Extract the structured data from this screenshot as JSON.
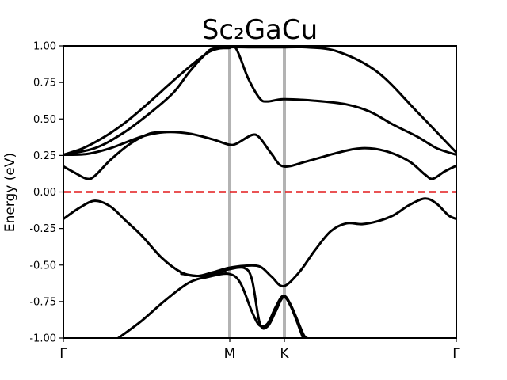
{
  "chart_data": {
    "type": "line",
    "title": "Sc₂GaCu",
    "xlabel": "",
    "ylabel": "Energy (eV)",
    "xlim": [
      0,
      1
    ],
    "ylim": [
      -1.0,
      1.0
    ],
    "yticks": [
      "1.00",
      "0.75",
      "0.50",
      "0.25",
      "0.00",
      "-0.25",
      "-0.50",
      "-0.75",
      "-1.00"
    ],
    "ytick_values": [
      1.0,
      0.75,
      0.5,
      0.25,
      0.0,
      -0.25,
      -0.5,
      -0.75,
      -1.0
    ],
    "high_symmetry_points": [
      {
        "label": "Γ",
        "x": 0.0
      },
      {
        "label": "M",
        "x": 0.4234
      },
      {
        "label": "K",
        "x": 0.5625
      },
      {
        "label": "Γ",
        "x": 1.0
      }
    ],
    "fermi_level": 0.0,
    "fermi_color": "#e41a1c",
    "band_color": "#000000",
    "divider_color": "#b3b3b3",
    "grid": false,
    "bands": [
      {
        "points": [
          [
            0,
            0.255
          ],
          [
            0.05,
            0.3
          ],
          [
            0.1,
            0.37
          ],
          [
            0.15,
            0.46
          ],
          [
            0.2,
            0.57
          ],
          [
            0.25,
            0.69
          ],
          [
            0.3,
            0.81
          ],
          [
            0.35,
            0.92
          ],
          [
            0.38,
            0.97
          ],
          [
            0.42,
            0.99
          ],
          [
            0.48,
            0.99
          ],
          [
            0.55,
            0.99
          ],
          [
            0.62,
            0.99
          ],
          [
            0.7,
            0.96
          ],
          [
            0.8,
            0.82
          ],
          [
            0.9,
            0.55
          ],
          [
            1.0,
            0.27
          ]
        ]
      },
      {
        "points": [
          [
            0,
            0.255
          ],
          [
            0.08,
            0.3
          ],
          [
            0.15,
            0.4
          ],
          [
            0.22,
            0.54
          ],
          [
            0.28,
            0.68
          ],
          [
            0.32,
            0.82
          ],
          [
            0.36,
            0.94
          ],
          [
            0.38,
            0.98
          ],
          [
            0.42,
            0.985
          ],
          [
            0.44,
            0.98
          ],
          [
            0.47,
            0.78
          ],
          [
            0.5,
            0.64
          ],
          [
            0.52,
            0.62
          ],
          [
            0.56,
            0.635
          ],
          [
            0.64,
            0.625
          ],
          [
            0.72,
            0.6
          ],
          [
            0.78,
            0.55
          ],
          [
            0.84,
            0.46
          ],
          [
            0.9,
            0.38
          ],
          [
            0.95,
            0.3
          ],
          [
            1.0,
            0.255
          ]
        ]
      },
      {
        "points": [
          [
            0,
            0.255
          ],
          [
            0.06,
            0.26
          ],
          [
            0.12,
            0.3
          ],
          [
            0.2,
            0.38
          ],
          [
            0.26,
            0.41
          ],
          [
            0.32,
            0.4
          ],
          [
            0.38,
            0.36
          ],
          [
            0.42,
            0.325
          ],
          [
            0.44,
            0.33
          ],
          [
            0.48,
            0.39
          ],
          [
            0.5,
            0.37
          ],
          [
            0.53,
            0.26
          ],
          [
            0.56,
            0.175
          ],
          [
            0.62,
            0.21
          ],
          [
            0.7,
            0.27
          ],
          [
            0.76,
            0.3
          ],
          [
            0.82,
            0.28
          ],
          [
            0.88,
            0.21
          ],
          [
            0.92,
            0.12
          ],
          [
            0.94,
            0.09
          ],
          [
            0.97,
            0.14
          ],
          [
            1.0,
            0.18
          ]
        ]
      },
      {
        "points": [
          [
            0,
            0.175
          ],
          [
            0.03,
            0.13
          ],
          [
            0.06,
            0.09
          ],
          [
            0.08,
            0.11
          ],
          [
            0.12,
            0.22
          ],
          [
            0.17,
            0.33
          ],
          [
            0.22,
            0.4
          ],
          [
            0.26,
            0.41
          ]
        ]
      },
      {
        "points": [
          [
            0,
            -0.185
          ],
          [
            0.04,
            -0.11
          ],
          [
            0.08,
            -0.06
          ],
          [
            0.12,
            -0.1
          ],
          [
            0.16,
            -0.2
          ],
          [
            0.2,
            -0.3
          ],
          [
            0.25,
            -0.45
          ],
          [
            0.3,
            -0.55
          ],
          [
            0.34,
            -0.575
          ],
          [
            0.38,
            -0.55
          ],
          [
            0.42,
            -0.52
          ],
          [
            0.46,
            -0.505
          ],
          [
            0.5,
            -0.51
          ],
          [
            0.53,
            -0.58
          ],
          [
            0.56,
            -0.645
          ],
          [
            0.6,
            -0.55
          ],
          [
            0.64,
            -0.4
          ],
          [
            0.68,
            -0.27
          ],
          [
            0.72,
            -0.215
          ],
          [
            0.76,
            -0.22
          ],
          [
            0.8,
            -0.2
          ],
          [
            0.84,
            -0.16
          ],
          [
            0.88,
            -0.09
          ],
          [
            0.92,
            -0.045
          ],
          [
            0.95,
            -0.08
          ],
          [
            0.98,
            -0.16
          ],
          [
            1.0,
            -0.185
          ]
        ]
      },
      {
        "points": [
          [
            0.14,
            -1.0
          ],
          [
            0.2,
            -0.88
          ],
          [
            0.26,
            -0.74
          ],
          [
            0.32,
            -0.62
          ],
          [
            0.37,
            -0.58
          ],
          [
            0.42,
            -0.56
          ],
          [
            0.45,
            -0.62
          ],
          [
            0.48,
            -0.82
          ],
          [
            0.5,
            -0.915
          ],
          [
            0.52,
            -0.9
          ],
          [
            0.54,
            -0.79
          ],
          [
            0.56,
            -0.71
          ],
          [
            0.58,
            -0.78
          ],
          [
            0.61,
            -0.97
          ],
          [
            0.62,
            -1.0
          ]
        ]
      },
      {
        "points": [
          [
            0.3,
            -0.56
          ],
          [
            0.35,
            -0.575
          ],
          [
            0.4,
            -0.55
          ],
          [
            0.42,
            -0.53
          ],
          [
            0.46,
            -0.52
          ],
          [
            0.48,
            -0.6
          ],
          [
            0.5,
            -0.9
          ],
          [
            0.52,
            -0.92
          ],
          [
            0.54,
            -0.82
          ],
          [
            0.56,
            -0.72
          ],
          [
            0.58,
            -0.79
          ],
          [
            0.61,
            -1.0
          ]
        ]
      }
    ]
  }
}
